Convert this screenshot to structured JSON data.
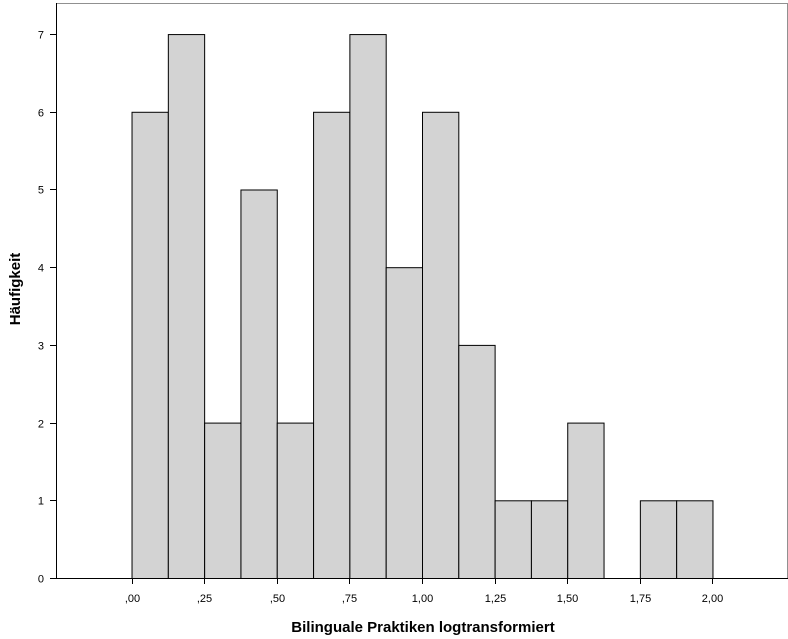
{
  "chart_data": {
    "type": "bar",
    "title": "",
    "xlabel": "Bilinguale Praktiken logtransformiert",
    "ylabel": "Häufigkeit",
    "bin_width": 0.125,
    "bins": [
      {
        "start": 0.0,
        "count": 6
      },
      {
        "start": 0.125,
        "count": 7
      },
      {
        "start": 0.25,
        "count": 2
      },
      {
        "start": 0.375,
        "count": 5
      },
      {
        "start": 0.5,
        "count": 2
      },
      {
        "start": 0.625,
        "count": 6
      },
      {
        "start": 0.75,
        "count": 7
      },
      {
        "start": 0.875,
        "count": 4
      },
      {
        "start": 1.0,
        "count": 6
      },
      {
        "start": 1.125,
        "count": 3
      },
      {
        "start": 1.25,
        "count": 1
      },
      {
        "start": 1.375,
        "count": 1
      },
      {
        "start": 1.5,
        "count": 2
      },
      {
        "start": 1.625,
        "count": 0
      },
      {
        "start": 1.75,
        "count": 1
      },
      {
        "start": 1.875,
        "count": 1
      }
    ],
    "x_ticks": [
      {
        "value": 0.0,
        "label": ",00"
      },
      {
        "value": 0.25,
        "label": ",25"
      },
      {
        "value": 0.5,
        "label": ",50"
      },
      {
        "value": 0.75,
        "label": ",75"
      },
      {
        "value": 1.0,
        "label": "1,00"
      },
      {
        "value": 1.25,
        "label": "1,25"
      },
      {
        "value": 1.5,
        "label": "1,50"
      },
      {
        "value": 1.75,
        "label": "1,75"
      },
      {
        "value": 2.0,
        "label": "2,00"
      }
    ],
    "y_ticks": [
      0,
      1,
      2,
      3,
      4,
      5,
      6,
      7
    ],
    "xlim": [
      -0.26,
      2.26
    ],
    "ylim": [
      0,
      7.4
    ],
    "grid": false,
    "colors": {
      "bar_fill": "#d3d3d3",
      "bar_stroke": "#000000",
      "axis": "#000000",
      "frame": "#909090",
      "background": "#ffffff"
    }
  }
}
